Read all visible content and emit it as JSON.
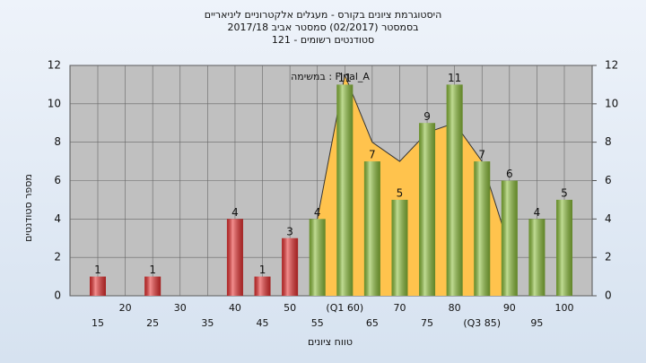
{
  "chart_data": {
    "type": "bar",
    "title": [
      "היסטוגרמת ציונים בקורס - מעגלים אלקטרוניים ליניאריים",
      "בסמסטר  (02/2017)  סמסטר אביב 2017/18",
      "סטודנטים רשומים - 121"
    ],
    "annotation": "במשימה : Final_A",
    "x_label": "טווח ציונים",
    "y_label": "מספר סטודנטים",
    "categories": [
      "15",
      "20",
      "25",
      "30",
      "35",
      "40",
      "45",
      "50",
      "55",
      "(Q1 60)",
      "65",
      "70",
      "75",
      "80",
      "(Q3 85)",
      "90",
      "95",
      "100"
    ],
    "values": [
      1,
      null,
      1,
      null,
      null,
      4,
      1,
      3,
      4,
      11,
      7,
      5,
      9,
      11,
      7,
      6,
      4,
      5
    ],
    "colors": [
      "#e83030",
      "#e83030",
      "#e83030",
      "#e83030",
      "#e83030",
      "#e83030",
      "#e83030",
      "#e83030",
      "#8cbf3a",
      "#8cbf3a",
      "#8cbf3a",
      "#8cbf3a",
      "#8cbf3a",
      "#8cbf3a",
      "#8cbf3a",
      "#8cbf3a",
      "#8cbf3a",
      "#8cbf3a"
    ],
    "overlay": {
      "color": "#ffc34d",
      "values": [
        null,
        null,
        null,
        null,
        null,
        null,
        null,
        null,
        4,
        11.5,
        8,
        7,
        8.5,
        9,
        7,
        2.5,
        null,
        null
      ]
    },
    "ylim": [
      0,
      12
    ],
    "yticks": [
      0,
      2,
      4,
      6,
      8,
      10,
      12
    ],
    "y2lim": [
      0,
      12
    ],
    "y2ticks": [
      0,
      2,
      4,
      6,
      8,
      10,
      12
    ],
    "grid": true
  }
}
